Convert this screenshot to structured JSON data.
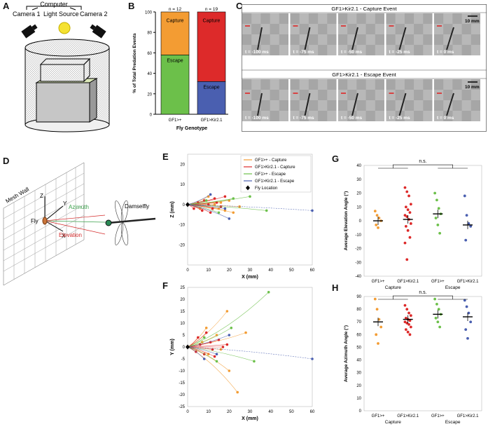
{
  "panels": {
    "A": "A",
    "B": "B",
    "C": "C",
    "D": "D",
    "E": "E",
    "F": "F",
    "G": "G",
    "H": "H"
  },
  "panel_a": {
    "computer": "Computer",
    "camera1": "Camera 1",
    "light_source": "Light Source",
    "camera2": "Camera 2"
  },
  "panel_c": {
    "capture_title": "GF1>Kir2.1 - Capture Event",
    "escape_title": "GF1>Kir2.1 - Escape Event",
    "scale": "10 mm",
    "times": [
      "t = -100 ms",
      "t = -75 ms",
      "t = -50 ms",
      "t = -25 ms",
      "t = 0 ms"
    ]
  },
  "panel_d": {
    "mesh_wall": "Mesh Wall",
    "z": "Z",
    "y": "Y",
    "x": "X",
    "azimuth": "Azimuth",
    "elevation": "Elevation",
    "fly": "Fly",
    "damselfly": "Damselfly"
  },
  "colors": {
    "orange": "#f39c33",
    "red": "#dd2a2a",
    "green": "#6cc04a",
    "blue": "#4a5fb0"
  },
  "chart_data": [
    {
      "id": "B",
      "type": "bar",
      "stacked": true,
      "categories": [
        "GF1>+",
        "GF1>Kir2.1"
      ],
      "n_labels": [
        "n = 12",
        "n = 19"
      ],
      "series_labels": [
        "Capture",
        "Escape"
      ],
      "escape_values": [
        58,
        32
      ],
      "capture_values": [
        42,
        68
      ],
      "ylabel": "% of Total Predation Events",
      "xlabel": "Fly Genotype",
      "ylim": [
        0,
        100
      ],
      "yticks": [
        "0",
        "20",
        "40",
        "60",
        "80",
        "100"
      ]
    },
    {
      "id": "E",
      "type": "line",
      "xlabel": "X (mm)",
      "ylabel": "Z (mm)",
      "xlim": [
        0,
        60
      ],
      "ylim": [
        -30,
        25
      ],
      "xticks": [
        "0",
        "10",
        "20",
        "30",
        "40",
        "50",
        "60"
      ],
      "yticks": [
        "20",
        "10",
        "0",
        "-10",
        "-20"
      ],
      "legend": [
        "GF1>+ - Capture",
        "GF1>Kir2.1 - Capture",
        "GF1>+ - Escape",
        "GF1>Kir2.1 - Escape",
        "Fly Location"
      ],
      "orange_end": [
        [
          6,
          -2
        ],
        [
          10,
          4
        ],
        [
          13,
          0
        ],
        [
          15,
          -2
        ],
        [
          16,
          1
        ],
        [
          18,
          -3
        ],
        [
          20,
          2
        ],
        [
          22,
          -4
        ],
        [
          25,
          -1
        ]
      ],
      "red_end": [
        [
          3,
          -2
        ],
        [
          5,
          1
        ],
        [
          7,
          -3
        ],
        [
          8,
          2
        ],
        [
          10,
          0
        ],
        [
          11,
          -4
        ],
        [
          13,
          3
        ],
        [
          14,
          1
        ],
        [
          16,
          -1
        ],
        [
          18,
          4
        ],
        [
          12,
          -2
        ]
      ],
      "green_end": [
        [
          9,
          2
        ],
        [
          15,
          -4
        ],
        [
          22,
          3
        ],
        [
          30,
          4
        ],
        [
          38,
          -3
        ]
      ],
      "blue_end": [
        [
          11,
          5
        ],
        [
          18,
          -2
        ],
        [
          20,
          -7
        ],
        [
          60,
          -3
        ]
      ]
    },
    {
      "id": "F",
      "type": "line",
      "xlabel": "X (mm)",
      "ylabel": "Y (mm)",
      "xlim": [
        0,
        60
      ],
      "ylim": [
        -25,
        25
      ],
      "xticks": [
        "0",
        "10",
        "20",
        "30",
        "40",
        "50",
        "60"
      ],
      "yticks": [
        "25",
        "20",
        "15",
        "10",
        "5",
        "0",
        "-5",
        "-10",
        "-15",
        "-20",
        "-25"
      ],
      "orange_end": [
        [
          9,
          8
        ],
        [
          14,
          5
        ],
        [
          19,
          15
        ],
        [
          20,
          -10
        ],
        [
          24,
          -19
        ],
        [
          28,
          6
        ],
        [
          10,
          -3
        ],
        [
          16,
          -1
        ],
        [
          7,
          2
        ]
      ],
      "red_end": [
        [
          4,
          -2
        ],
        [
          5,
          4
        ],
        [
          6,
          1
        ],
        [
          8,
          -3
        ],
        [
          9,
          6
        ],
        [
          11,
          2
        ],
        [
          13,
          -4
        ],
        [
          15,
          3
        ],
        [
          17,
          0
        ],
        [
          19,
          1
        ],
        [
          12,
          -1
        ]
      ],
      "green_end": [
        [
          8,
          4
        ],
        [
          14,
          -6
        ],
        [
          21,
          8
        ],
        [
          32,
          -6
        ],
        [
          39,
          23
        ]
      ],
      "blue_end": [
        [
          8,
          -5
        ],
        [
          14,
          -3
        ],
        [
          20,
          5
        ],
        [
          60,
          -5
        ]
      ]
    },
    {
      "id": "G",
      "type": "scatter",
      "ylabel": "Average Elevation Angle (°)",
      "ylim": [
        -40,
        40
      ],
      "yticks": [
        "40",
        "30",
        "20",
        "10",
        "0",
        "-10",
        "-20",
        "-30",
        "-40"
      ],
      "groups": [
        "GF1>+",
        "GF1>Kir2.1",
        "GF1>+",
        "GF1>Kir2.1"
      ],
      "categories": [
        "Capture",
        "Escape"
      ],
      "sig": "n.s.",
      "means": [
        0,
        1,
        5,
        -3
      ],
      "points": [
        [
          7,
          4,
          2,
          0,
          -3,
          -5
        ],
        [
          24,
          21,
          18,
          12,
          10,
          8,
          6,
          4,
          3,
          1,
          -2,
          -4,
          -7,
          -12,
          -16,
          -28
        ],
        [
          20,
          15,
          9,
          5,
          2,
          -3,
          -9
        ],
        [
          18,
          4,
          -2,
          -4,
          -14
        ]
      ]
    },
    {
      "id": "H",
      "type": "scatter",
      "ylabel": "Average Azimuth Angle (°)",
      "ylim": [
        0,
        90
      ],
      "yticks": [
        "90",
        "80",
        "70",
        "60",
        "50",
        "40",
        "30",
        "20",
        "10",
        "0"
      ],
      "groups": [
        "GF1>+",
        "GF1>Kir2.1",
        "GF1>+",
        "GF1>Kir2.1"
      ],
      "categories": [
        "Capture",
        "Escape"
      ],
      "sig": "n.s.",
      "means": [
        70,
        72,
        76,
        74
      ],
      "points": [
        [
          88,
          80,
          72,
          66,
          60,
          53
        ],
        [
          83,
          80,
          77,
          75,
          73,
          72,
          71,
          70,
          69,
          68,
          66,
          64,
          62,
          60
        ],
        [
          88,
          84,
          80,
          76,
          73,
          70,
          66
        ],
        [
          87,
          82,
          77,
          70,
          64,
          57
        ]
      ]
    }
  ]
}
